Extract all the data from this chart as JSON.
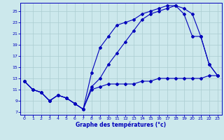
{
  "xlabel": "Graphe des températures (°c)",
  "bg_color": "#cce8ec",
  "line_color": "#0000bb",
  "grid_color": "#aaccd0",
  "x_ticks": [
    0,
    1,
    2,
    3,
    4,
    5,
    6,
    7,
    8,
    9,
    10,
    11,
    12,
    13,
    14,
    15,
    16,
    17,
    18,
    19,
    20,
    21,
    22,
    23
  ],
  "y_ticks": [
    7,
    9,
    11,
    13,
    15,
    17,
    19,
    21,
    23,
    25
  ],
  "xlim": [
    -0.5,
    23.5
  ],
  "ylim": [
    6.5,
    26.5
  ],
  "line1_x": [
    0,
    1,
    2,
    3,
    4,
    5,
    6,
    7,
    8,
    9,
    10,
    11,
    12,
    13,
    14,
    15,
    16,
    17,
    18,
    19,
    20,
    21,
    22,
    23
  ],
  "line1_y": [
    12.5,
    11.0,
    10.5,
    9.0,
    10.0,
    9.5,
    8.5,
    7.5,
    11.0,
    11.5,
    12.0,
    12.0,
    12.0,
    12.0,
    12.5,
    12.5,
    13.0,
    13.0,
    13.0,
    13.0,
    13.0,
    13.0,
    13.5,
    13.5
  ],
  "line2_x": [
    0,
    1,
    2,
    3,
    4,
    5,
    6,
    7,
    8,
    9,
    10,
    11,
    12,
    13,
    14,
    15,
    16,
    17,
    18,
    19,
    20,
    21,
    22,
    23
  ],
  "line2_y": [
    12.5,
    11.0,
    10.5,
    9.0,
    10.0,
    9.5,
    8.5,
    7.5,
    14.0,
    18.5,
    20.5,
    22.5,
    23.0,
    23.5,
    24.5,
    25.0,
    25.5,
    26.0,
    26.0,
    24.5,
    20.5,
    20.5,
    15.5,
    13.5
  ],
  "line3_x": [
    0,
    1,
    2,
    3,
    4,
    5,
    6,
    7,
    8,
    9,
    10,
    11,
    12,
    13,
    14,
    15,
    16,
    17,
    18,
    19,
    20,
    21,
    22,
    23
  ],
  "line3_y": [
    12.5,
    11.0,
    10.5,
    9.0,
    10.0,
    9.5,
    8.5,
    7.5,
    11.5,
    13.0,
    15.5,
    17.5,
    19.5,
    21.5,
    23.5,
    24.5,
    25.0,
    25.5,
    26.0,
    25.5,
    24.5,
    20.5,
    15.5,
    13.5
  ]
}
